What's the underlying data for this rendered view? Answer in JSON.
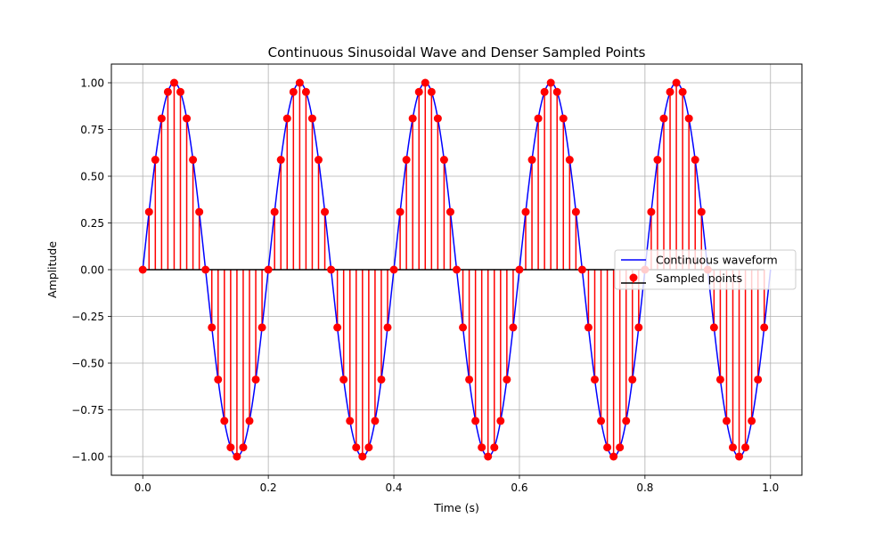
{
  "chart_data": {
    "type": "line",
    "title": "Continuous Sinusoidal Wave and Denser Sampled Points",
    "xlabel": "Time (s)",
    "ylabel": "Amplitude",
    "xlim": [
      -0.05,
      1.05
    ],
    "ylim": [
      -1.1,
      1.1
    ],
    "xticks": [
      0.0,
      0.2,
      0.4,
      0.6,
      0.8,
      1.0
    ],
    "xtick_labels": [
      "0.0",
      "0.2",
      "0.4",
      "0.6",
      "0.8",
      "1.0"
    ],
    "yticks": [
      -1.0,
      -0.75,
      -0.5,
      -0.25,
      0.0,
      0.25,
      0.5,
      0.75,
      1.0
    ],
    "ytick_labels": [
      "−1.00",
      "−0.75",
      "−0.50",
      "−0.25",
      "0.00",
      "0.25",
      "0.50",
      "0.75",
      "1.00"
    ],
    "grid": true,
    "legend_position": "center-right",
    "series": [
      {
        "name": "Continuous waveform",
        "kind": "line",
        "color": "#0000ff",
        "frequency_hz": 5,
        "amplitude": 1.0,
        "x_range": [
          0,
          1
        ]
      },
      {
        "name": "Sampled points",
        "kind": "stem",
        "marker_color": "#ff0000",
        "stem_color": "#ff0000",
        "baseline_color": "#000000",
        "x": [
          0.0,
          0.01,
          0.02,
          0.03,
          0.04,
          0.05,
          0.06,
          0.07,
          0.08,
          0.09,
          0.1,
          0.11,
          0.12,
          0.13,
          0.14,
          0.15,
          0.16,
          0.17,
          0.18,
          0.19,
          0.2,
          0.21,
          0.22,
          0.23,
          0.24,
          0.25,
          0.26,
          0.27,
          0.28,
          0.29,
          0.3,
          0.31,
          0.32,
          0.33,
          0.34,
          0.35,
          0.36,
          0.37,
          0.38,
          0.39,
          0.4,
          0.41,
          0.42,
          0.43,
          0.44,
          0.45,
          0.46,
          0.47,
          0.48,
          0.49,
          0.5,
          0.51,
          0.52,
          0.53,
          0.54,
          0.55,
          0.56,
          0.57,
          0.58,
          0.59,
          0.6,
          0.61,
          0.62,
          0.63,
          0.64,
          0.65,
          0.66,
          0.67,
          0.68,
          0.69,
          0.7,
          0.71,
          0.72,
          0.73,
          0.74,
          0.75,
          0.76,
          0.77,
          0.78,
          0.79,
          0.8,
          0.81,
          0.82,
          0.83,
          0.84,
          0.85,
          0.86,
          0.87,
          0.88,
          0.89,
          0.9,
          0.91,
          0.92,
          0.93,
          0.94,
          0.95,
          0.96,
          0.97,
          0.98,
          0.99
        ],
        "y": [
          0.0,
          0.309,
          0.588,
          0.809,
          0.951,
          1.0,
          0.951,
          0.809,
          0.588,
          0.309,
          0.0,
          -0.309,
          -0.588,
          -0.809,
          -0.951,
          -1.0,
          -0.951,
          -0.809,
          -0.588,
          -0.309,
          0.0,
          0.309,
          0.588,
          0.809,
          0.951,
          1.0,
          0.951,
          0.809,
          0.588,
          0.309,
          0.0,
          -0.309,
          -0.588,
          -0.809,
          -0.951,
          -1.0,
          -0.951,
          -0.809,
          -0.588,
          -0.309,
          0.0,
          0.309,
          0.588,
          0.809,
          0.951,
          1.0,
          0.951,
          0.809,
          0.588,
          0.309,
          0.0,
          -0.309,
          -0.588,
          -0.809,
          -0.951,
          -1.0,
          -0.951,
          -0.809,
          -0.588,
          -0.309,
          0.0,
          0.309,
          0.588,
          0.809,
          0.951,
          1.0,
          0.951,
          0.809,
          0.588,
          0.309,
          0.0,
          -0.309,
          -0.588,
          -0.809,
          -0.951,
          -1.0,
          -0.951,
          -0.809,
          -0.588,
          -0.309,
          0.0,
          0.309,
          0.588,
          0.809,
          0.951,
          1.0,
          0.951,
          0.809,
          0.588,
          0.309,
          0.0,
          -0.309,
          -0.588,
          -0.809,
          -0.951,
          -1.0,
          -0.951,
          -0.809,
          -0.588,
          -0.309
        ]
      }
    ]
  }
}
